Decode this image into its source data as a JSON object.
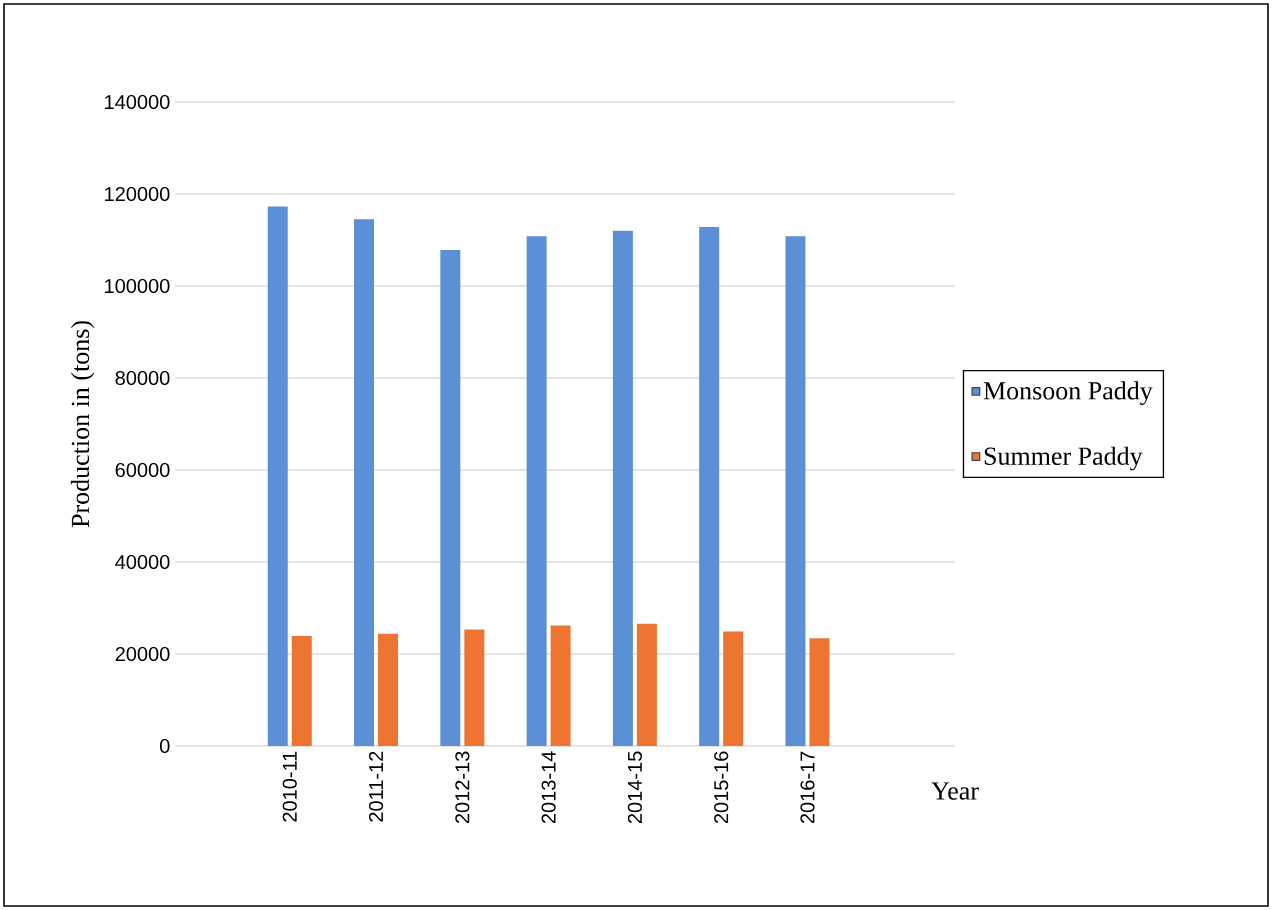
{
  "chart_data": {
    "type": "bar",
    "xlabel": "Year",
    "ylabel": "Production in (tons)",
    "categories": [
      "2010-11",
      "2011-12",
      "2012-13",
      "2013-14",
      "2014-15",
      "2015-16",
      "2016-17"
    ],
    "series": [
      {
        "name": "Monsoon Paddy",
        "color": "#5b8fd6",
        "values": [
          117300,
          114500,
          107800,
          110800,
          112000,
          112800,
          110800
        ]
      },
      {
        "name": "Summer Paddy",
        "color": "#ed7431",
        "values": [
          23900,
          24400,
          25300,
          26200,
          26600,
          24900,
          23400
        ]
      }
    ],
    "ylim": [
      0,
      140000
    ],
    "yticks": [
      0,
      20000,
      40000,
      60000,
      80000,
      100000,
      120000,
      140000
    ],
    "grid": "y",
    "legend": "right"
  }
}
